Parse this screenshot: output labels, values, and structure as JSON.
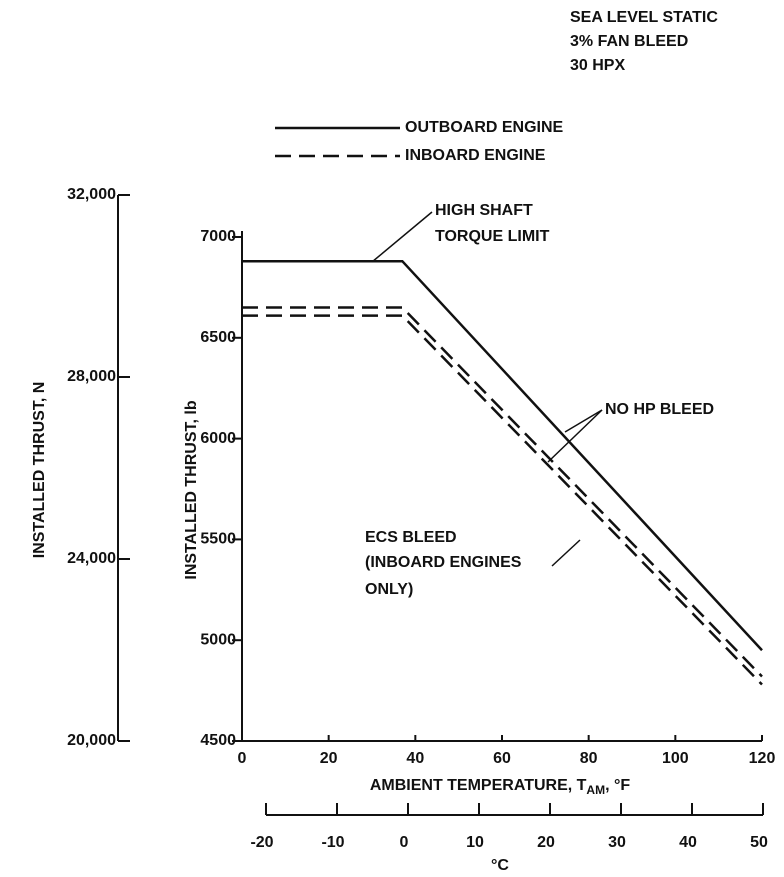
{
  "chart_data": {
    "type": "line",
    "notes": [
      "SEA LEVEL STATIC",
      "3% FAN BLEED",
      "30 HPX"
    ],
    "x": [
      0,
      37,
      120
    ],
    "series": [
      {
        "name": "OUTBOARD ENGINE",
        "color": "#111111",
        "dash": "solid",
        "values": [
          6880,
          6880,
          4950
        ]
      },
      {
        "name": "INBOARD ENGINE",
        "color": "#111111",
        "dash": "dashed",
        "values": [
          6650,
          6650,
          4820
        ]
      },
      {
        "color": "#111111",
        "dash": "dashed",
        "values": [
          6610,
          6610,
          4780
        ]
      }
    ],
    "xlim": [
      0,
      120
    ],
    "xticks": [
      0,
      20,
      40,
      60,
      80,
      100,
      120
    ],
    "ylim": [
      4500,
      7000
    ],
    "yticks": [
      4500,
      5000,
      5500,
      6000,
      6500,
      7000
    ],
    "y2lim": [
      20000,
      32000
    ],
    "y2ticks": [
      {
        "value": 20000,
        "label": "20,000"
      },
      {
        "value": 24000,
        "label": "24,000"
      },
      {
        "value": 28000,
        "label": "28,000"
      },
      {
        "value": 32000,
        "label": "32,000"
      }
    ],
    "x2lim": [
      -20,
      50
    ],
    "x2ticks": [
      -20,
      -10,
      0,
      10,
      20,
      30,
      40,
      50
    ],
    "x2_label": "°C",
    "y_label": "INSTALLED THRUST, lb",
    "y2_label": "INSTALLED THRUST, N",
    "x_label": {
      "text": "AMBIENT TEMPERATURE, T",
      "sub": "AM",
      "tail": ", °F"
    },
    "annotations": {
      "torque": [
        "HIGH SHAFT",
        "TORQUE LIMIT"
      ],
      "no_hp": "NO HP BLEED",
      "ecs": [
        "ECS BLEED",
        "(INBOARD ENGINES",
        "ONLY)"
      ]
    },
    "grid": false
  }
}
